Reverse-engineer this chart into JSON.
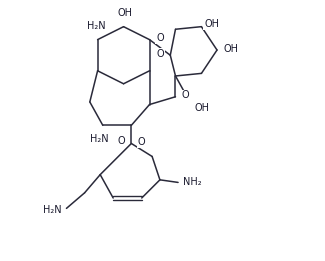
{
  "bg_color": "#ffffff",
  "line_color": "#2a2a3a",
  "text_color": "#1a1a2e",
  "font_size": 7.0,
  "line_width": 1.1,
  "xlim": [
    0.0,
    10.0
  ],
  "ylim": [
    0.0,
    10.0
  ]
}
